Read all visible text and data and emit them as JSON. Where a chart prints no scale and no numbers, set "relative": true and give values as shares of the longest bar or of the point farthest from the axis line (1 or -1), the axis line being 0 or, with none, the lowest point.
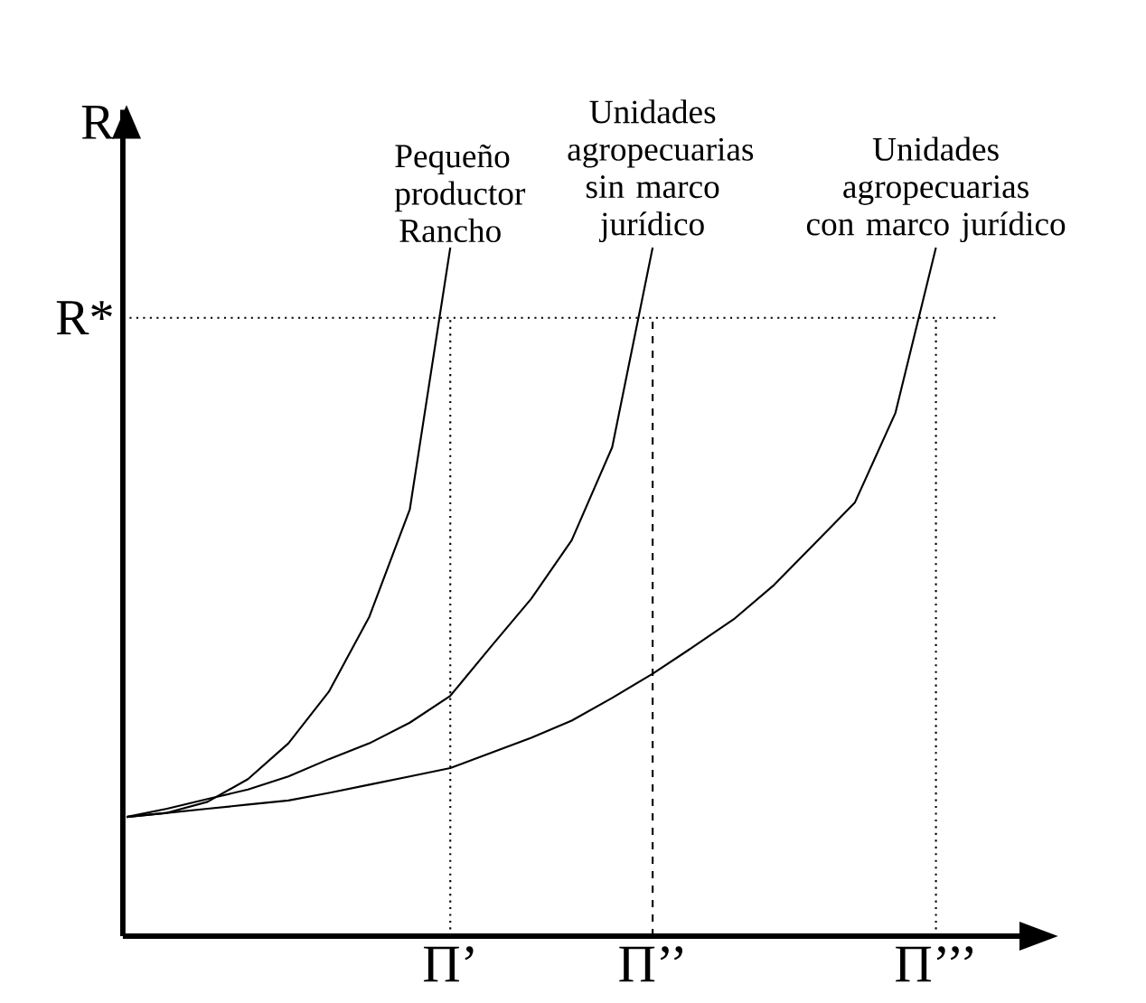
{
  "chart_data": {
    "type": "line",
    "relative": true,
    "ylabel": "R",
    "marker": "none",
    "line_style": "solid",
    "categories": [
      null,
      null,
      null,
      null,
      null,
      null,
      null,
      null,
      "Π’",
      null,
      null,
      null,
      null,
      "Π’’",
      null,
      null,
      null,
      null,
      null,
      null,
      "Π’’’"
    ],
    "series": [
      {
        "name": "Pequeño productor Rancho",
        "color": "#000000",
        "values": [
          0.173,
          0.179,
          0.195,
          0.228,
          0.28,
          0.355,
          0.464,
          0.62,
          1.0,
          null,
          null,
          null,
          null,
          null,
          null,
          null,
          null,
          null,
          null,
          null,
          null
        ]
      },
      {
        "name": "Unidades agropecuarias sin marco jurídico",
        "color": "#000000",
        "values": [
          0.173,
          0.185,
          0.199,
          0.213,
          0.232,
          0.257,
          0.28,
          0.31,
          0.349,
          0.42,
          0.49,
          0.575,
          0.71,
          1.0,
          null,
          null,
          null,
          null,
          null,
          null,
          null
        ]
      },
      {
        "name": "Unidades agropecuarias con marco jurídico",
        "color": "#000000",
        "values": [
          0.173,
          0.179,
          0.185,
          0.191,
          0.197,
          0.208,
          0.22,
          0.232,
          0.244,
          0.266,
          0.288,
          0.313,
          0.346,
          0.381,
          0.42,
          0.46,
          0.51,
          0.57,
          0.63,
          0.76,
          1.0
        ]
      }
    ],
    "ref_lines": [
      {
        "axis": "y",
        "value": 0.898,
        "label": "R*",
        "line_style": "dotted"
      },
      {
        "axis": "x",
        "value": "Π’",
        "line_style": "dotted"
      },
      {
        "axis": "x",
        "value": "Π’’",
        "line_style": "dashed"
      },
      {
        "axis": "x",
        "value": "Π’’’",
        "line_style": "dotted"
      }
    ]
  }
}
